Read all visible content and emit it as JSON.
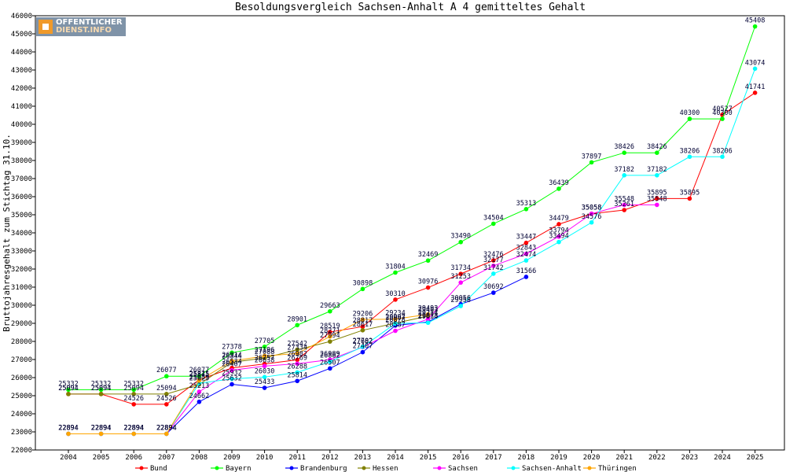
{
  "chart_data": {
    "type": "line",
    "title": "Besoldungsvergleich Sachsen-Anhalt A 4 gemitteltes Gehalt",
    "ylabel": "Bruttojahresgehalt zum Stichtag 31.10.",
    "xlabel": "",
    "ylim": [
      22000,
      46000
    ],
    "ytick_step": 1000,
    "grid": false,
    "legend_position": "bottom",
    "x": [
      2004,
      2005,
      2006,
      2007,
      2008,
      2009,
      2010,
      2011,
      2012,
      2013,
      2014,
      2015,
      2016,
      2017,
      2018,
      2019,
      2020,
      2021,
      2022,
      2023,
      2024,
      2025
    ],
    "series": [
      {
        "name": "Bund",
        "color": "#ff0000",
        "values": [
          25094,
          25094,
          24526,
          24526,
          25875,
          26534,
          26757,
          26982,
          28519,
          28817,
          30310,
          30976,
          31734,
          32476,
          33447,
          34479,
          35058,
          35261,
          35895,
          35895,
          40527,
          41741
        ]
      },
      {
        "name": "Bayern",
        "color": "#00ff00",
        "values": [
          25332,
          25332,
          25332,
          26077,
          26077,
          27378,
          27705,
          28901,
          29663,
          30898,
          31804,
          32469,
          33490,
          34504,
          35313,
          36439,
          37897,
          38426,
          38426,
          40300,
          40300,
          45408
        ]
      },
      {
        "name": "Brandenburg",
        "color": "#0000ff",
        "values": [
          22894,
          22894,
          22894,
          22894,
          24662,
          25632,
          25433,
          25814,
          26507,
          27407,
          28878,
          29078,
          30056,
          30692,
          31566,
          null,
          null,
          null,
          null,
          null,
          null,
          null
        ]
      },
      {
        "name": "Hessen",
        "color": "#808000",
        "values": [
          25094,
          25094,
          25094,
          25094,
          25625,
          26844,
          27088,
          27542,
          27994,
          28617,
          29007,
          29403,
          null,
          null,
          null,
          null,
          null,
          null,
          null,
          null,
          null,
          null
        ]
      },
      {
        "name": "Sachsen",
        "color": "#ff00ff",
        "values": [
          22894,
          22894,
          22894,
          22894,
          25213,
          26407,
          26638,
          26769,
          26989,
          27682,
          28587,
          29234,
          31253,
          32177,
          32843,
          33794,
          35058,
          35548,
          35548,
          null,
          null,
          null
        ]
      },
      {
        "name": "Sachsen-Anhalt",
        "color": "#00ffff",
        "values": [
          22894,
          22894,
          22894,
          22894,
          25689,
          25932,
          26030,
          26288,
          26882,
          27702,
          28987,
          29034,
          29958,
          31742,
          32474,
          33494,
          34576,
          37182,
          37182,
          38206,
          38206,
          43074
        ]
      },
      {
        "name": "Thüringen",
        "color": "#ffa500",
        "values": [
          22894,
          22894,
          22894,
          22894,
          25845,
          26914,
          27196,
          27334,
          28271,
          29206,
          29234,
          29493,
          null,
          null,
          null,
          null,
          null,
          null,
          null,
          null,
          null,
          null
        ]
      }
    ]
  },
  "logo": {
    "line1": "OFFENTLICHER",
    "line2": "DIENST.INFO"
  }
}
